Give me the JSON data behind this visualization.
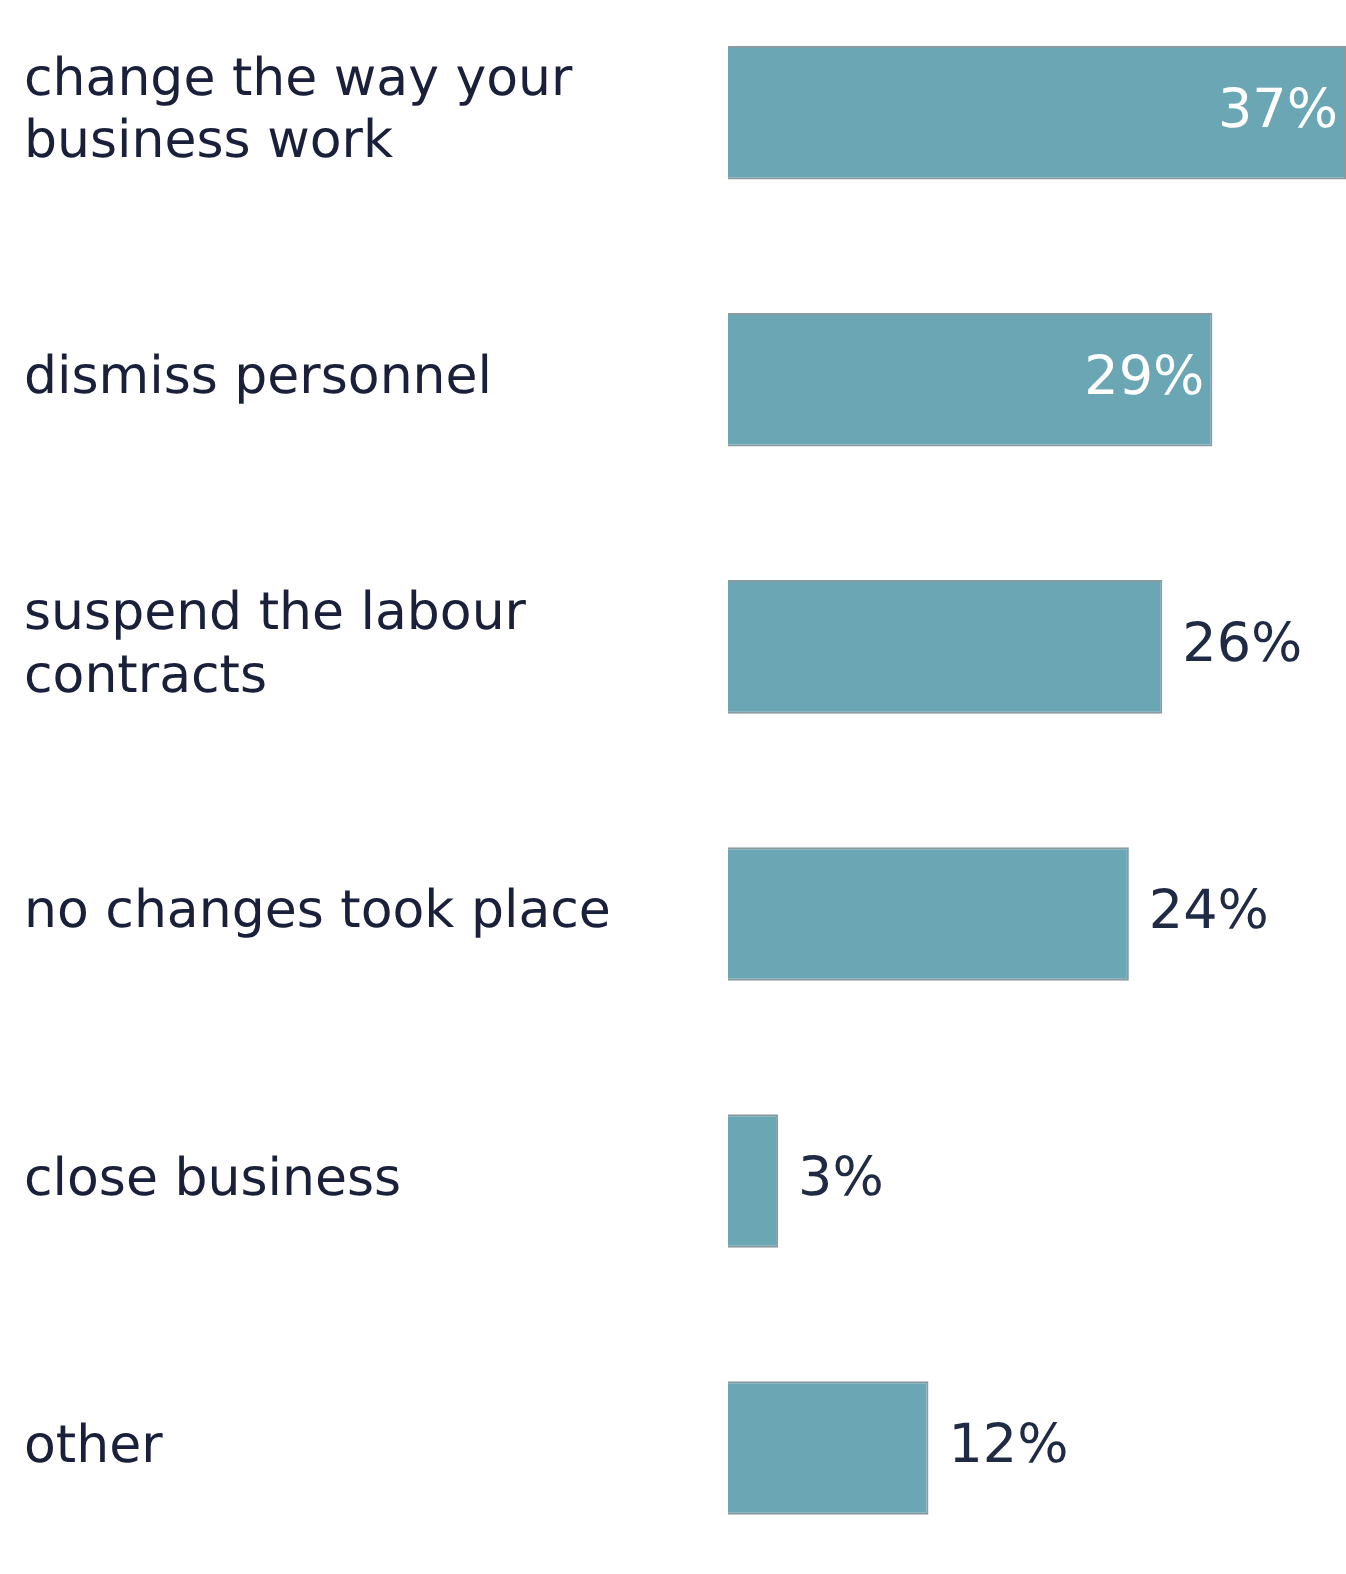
{
  "chart_data": {
    "type": "bar",
    "orientation": "horizontal",
    "categories": [
      "change the way your business work",
      "dismiss personnel",
      "suspend the labour contracts",
      "no changes took place",
      "close business",
      "other"
    ],
    "values": [
      37,
      29,
      26,
      24,
      3,
      12
    ],
    "value_labels": [
      "37%",
      "29%",
      "26%",
      "24%",
      "3%",
      "12%"
    ],
    "color": "#6ba6b4",
    "legend": false
  }
}
